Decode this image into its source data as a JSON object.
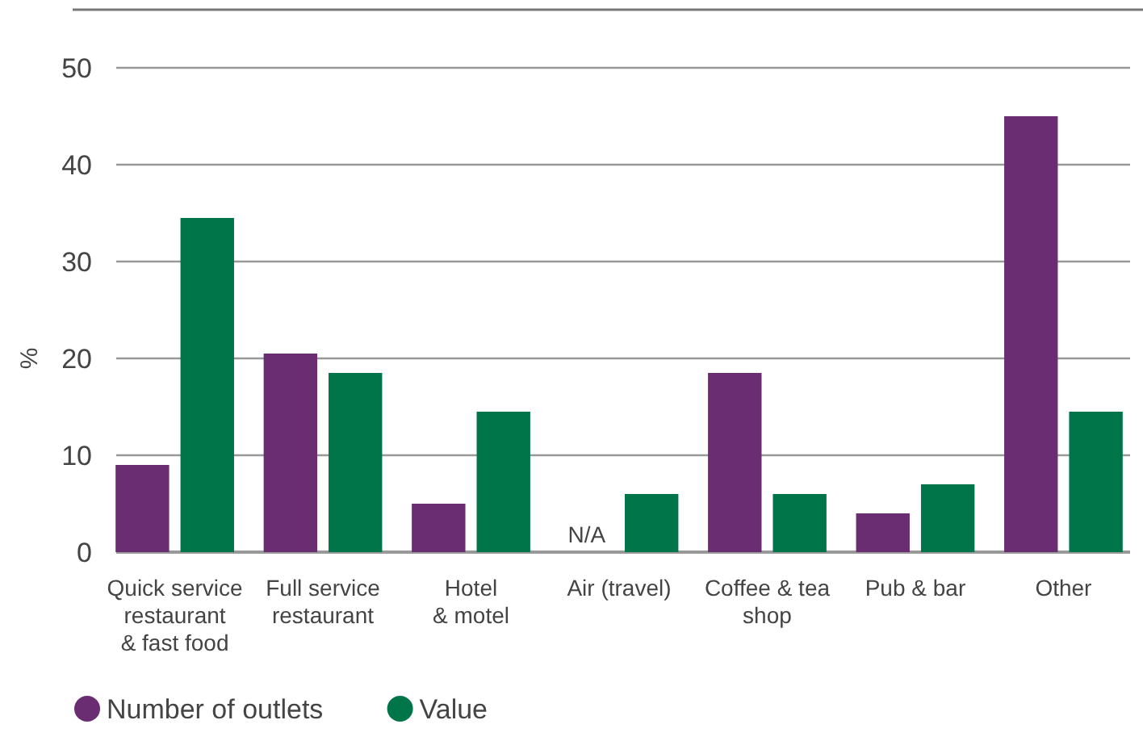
{
  "chart_data": {
    "type": "bar",
    "ylabel": "%",
    "categories": [
      "Quick service\nrestaurant\n& fast food",
      "Full service\nrestaurant",
      "Hotel\n& motel",
      "Air (travel)",
      "Coffee & tea\nshop",
      "Pub & bar",
      "Other"
    ],
    "series": [
      {
        "name": "Number of outlets",
        "color": "#6b2d72",
        "values": [
          9,
          20.5,
          5,
          null,
          18.5,
          4,
          45
        ]
      },
      {
        "name": "Value",
        "color": "#00754a",
        "values": [
          34.5,
          18.5,
          14.5,
          6,
          6,
          7,
          14.5
        ]
      }
    ],
    "ylim": [
      0,
      56
    ],
    "yticks": [
      0,
      10,
      20,
      30,
      40,
      50
    ],
    "grid": "y",
    "legend": "bottom",
    "annotations": [
      {
        "text": "N/A",
        "x": "Air (travel)",
        "y": 0
      }
    ]
  }
}
